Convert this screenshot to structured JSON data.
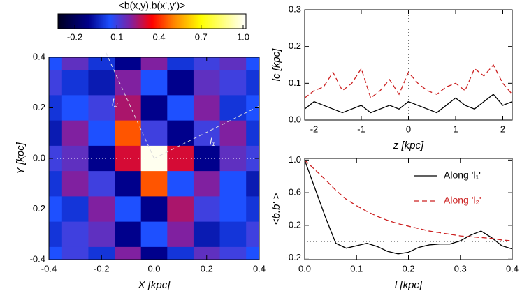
{
  "chart_data": [
    {
      "type": "heatmap",
      "title": "<b(x,y).b(x',y')>",
      "xlabel": "X [kpc]",
      "ylabel": "Y [kpc]",
      "x": [
        -0.4,
        -0.3,
        -0.2,
        -0.1,
        0.0,
        0.1,
        0.2,
        0.3,
        0.4
      ],
      "y": [
        0.4,
        0.3,
        0.2,
        0.1,
        0.0,
        -0.1,
        -0.2,
        -0.3,
        -0.4
      ],
      "z": [
        [
          0.05,
          0.15,
          0.0,
          -0.1,
          0.2,
          0.0,
          0.1,
          0.15,
          0.05
        ],
        [
          0.1,
          0.0,
          -0.05,
          0.2,
          0.05,
          -0.1,
          0.15,
          0.1,
          0.0
        ],
        [
          0.0,
          0.05,
          0.1,
          0.25,
          -0.1,
          0.05,
          0.2,
          0.0,
          0.05
        ],
        [
          -0.05,
          0.2,
          0.05,
          0.45,
          0.1,
          -0.1,
          0.1,
          0.2,
          0.0
        ],
        [
          0.1,
          0.15,
          -0.1,
          0.3,
          1.0,
          0.3,
          -0.1,
          0.15,
          0.1
        ],
        [
          0.0,
          0.2,
          0.1,
          -0.1,
          0.45,
          0.05,
          0.2,
          0.05,
          -0.05
        ],
        [
          0.05,
          0.0,
          0.2,
          0.05,
          -0.1,
          0.25,
          0.1,
          0.05,
          0.0
        ],
        [
          0.0,
          0.1,
          0.15,
          -0.1,
          0.05,
          0.2,
          -0.05,
          0.0,
          0.1
        ],
        [
          0.05,
          0.1,
          0.0,
          0.2,
          -0.1,
          0.0,
          0.15,
          0.1,
          0.05
        ]
      ],
      "xlim": [
        -0.4,
        0.4
      ],
      "ylim": [
        -0.4,
        0.4
      ],
      "xticks": [
        -0.4,
        -0.2,
        {
          "value": 0,
          "label": "0.0"
        },
        0.2,
        0.4
      ],
      "yticks": [
        -0.4,
        -0.2,
        {
          "value": 0,
          "label": "0.0"
        },
        0.2,
        0.4
      ],
      "clim": [
        -0.32,
        1.02
      ],
      "cticks": [
        -0.2,
        0.1,
        0.4,
        0.7,
        {
          "value": 1,
          "label": "1.0"
        }
      ],
      "colorscale": [
        [
          -0.32,
          "#000020"
        ],
        [
          -0.1,
          "#00008c"
        ],
        [
          0.05,
          "#1e50ff"
        ],
        [
          0.2,
          "#8020a0"
        ],
        [
          0.35,
          "#ff0000"
        ],
        [
          0.5,
          "#ff8000"
        ],
        [
          0.7,
          "#ffff00"
        ],
        [
          1.02,
          "#ffffff"
        ]
      ],
      "annotations": [
        "l₂",
        "l₁"
      ]
    },
    {
      "type": "line",
      "xlabel": "z [kpc]",
      "ylabel": "lc [kpc]",
      "x": [
        -2.2,
        -2.0,
        -1.8,
        -1.6,
        -1.4,
        -1.2,
        -1.0,
        -0.8,
        -0.6,
        -0.4,
        -0.2,
        0.0,
        0.2,
        0.4,
        0.6,
        0.8,
        1.0,
        1.2,
        1.4,
        1.6,
        1.8,
        2.0,
        2.2
      ],
      "series": [
        {
          "color": "#000000",
          "style": "solid",
          "values": [
            0.03,
            0.05,
            0.04,
            0.03,
            0.02,
            0.03,
            0.04,
            0.02,
            0.03,
            0.04,
            0.03,
            0.05,
            0.04,
            0.03,
            0.02,
            0.04,
            0.06,
            0.04,
            0.03,
            0.05,
            0.07,
            0.04,
            0.05
          ]
        },
        {
          "color": "#cc2020",
          "style": "dashed",
          "values": [
            0.06,
            0.08,
            0.09,
            0.13,
            0.08,
            0.1,
            0.14,
            0.06,
            0.08,
            0.11,
            0.07,
            0.13,
            0.1,
            0.08,
            0.07,
            0.09,
            0.1,
            0.08,
            0.14,
            0.12,
            0.15,
            0.1,
            0.07
          ]
        }
      ],
      "xlim": [
        -2.2,
        2.2
      ],
      "ylim": [
        0,
        0.3
      ],
      "xticks": [
        -2,
        -1,
        0,
        1,
        2
      ],
      "yticks": [
        {
          "value": 0,
          "label": "0.0"
        },
        0.1,
        0.2,
        0.3
      ],
      "vline": 0
    },
    {
      "type": "line",
      "xlabel": "l [kpc]",
      "ylabel": "<b.b' >",
      "x": [
        0.0,
        0.02,
        0.04,
        0.06,
        0.08,
        0.1,
        0.12,
        0.14,
        0.16,
        0.18,
        0.2,
        0.22,
        0.24,
        0.26,
        0.28,
        0.3,
        0.32,
        0.34,
        0.36,
        0.38,
        0.4
      ],
      "series": [
        {
          "name": "Along 'l₁'",
          "color": "#000000",
          "style": "solid",
          "values": [
            1.0,
            0.65,
            0.3,
            -0.02,
            -0.08,
            -0.05,
            -0.02,
            -0.06,
            -0.12,
            -0.15,
            -0.13,
            -0.07,
            -0.04,
            -0.03,
            -0.03,
            0.01,
            0.08,
            0.13,
            0.05,
            -0.05,
            -0.09
          ]
        },
        {
          "name": "Along 'l₂'",
          "color": "#cc2020",
          "style": "dashed",
          "values": [
            1.0,
            0.88,
            0.76,
            0.63,
            0.52,
            0.44,
            0.37,
            0.31,
            0.26,
            0.22,
            0.19,
            0.16,
            0.13,
            0.11,
            0.09,
            0.07,
            0.06,
            0.05,
            0.04,
            0.02,
            0.01
          ]
        }
      ],
      "xlim": [
        0,
        0.4
      ],
      "ylim": [
        -0.22,
        1.02
      ],
      "xticks": [
        {
          "value": 0,
          "label": "0.0"
        },
        0.1,
        0.2,
        0.3,
        0.4
      ],
      "yticks": [
        -0.2,
        0.2,
        0.6,
        {
          "value": 1,
          "label": "1.0"
        }
      ],
      "hline": 0,
      "legend": "upper right"
    }
  ]
}
